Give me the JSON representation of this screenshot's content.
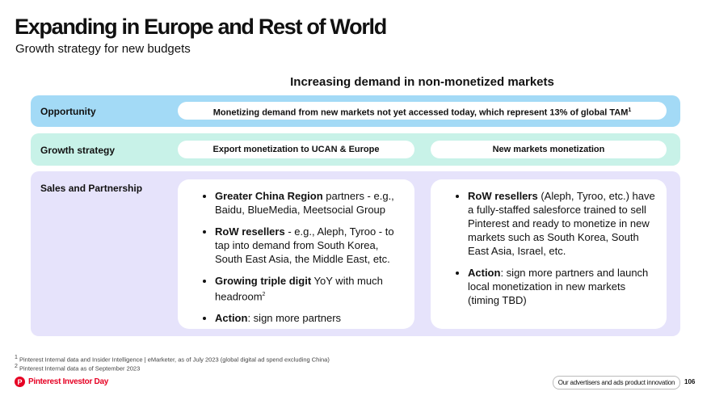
{
  "header": {
    "title": "Expanding in Europe and Rest of World",
    "subtitle": "Growth strategy for new budgets"
  },
  "section_heading": "Increasing demand in non-monetized markets",
  "opportunity": {
    "label": "Opportunity",
    "text": "Monetizing demand from new markets not yet accessed today, which represent 13% of global TAM",
    "sup": "1"
  },
  "growth_strategy": {
    "label": "Growth strategy",
    "pills": [
      "Export monetization to UCAN & Europe",
      "New markets monetization"
    ]
  },
  "sales": {
    "label": "Sales and Partnership",
    "columns": [
      [
        {
          "bold": "Greater China Region",
          "text": " partners - e.g., Baidu, BlueMedia, Meetsocial Group"
        },
        {
          "bold": "RoW resellers",
          "text": " - e.g., Aleph, Tyroo - to tap into demand from South Korea, South East Asia, the Middle East, etc."
        },
        {
          "bold": "Growing triple digit",
          "text": " YoY with much headroom",
          "sup": "2"
        },
        {
          "bold": "Action",
          "text": ": sign more partners"
        }
      ],
      [
        {
          "bold": "RoW resellers",
          "text": " (Aleph, Tyroo, etc.) have a fully-staffed salesforce trained to sell Pinterest and ready to monetize in new markets such as South Korea, South East Asia, Israel, etc."
        },
        {
          "bold": "Action",
          "text": ": sign more partners and launch local monetization in new markets (timing TBD)"
        }
      ]
    ]
  },
  "footnotes": [
    {
      "mark": "1",
      "text": "Pinterest Internal data and Insider Intelligence | eMarketer, as of July 2023 (global digital ad spend excluding China)"
    },
    {
      "mark": "2",
      "text": "Pinterest Internal data as of September 2023"
    }
  ],
  "footer": {
    "brand": "Pinterest Investor Day",
    "section": "Our advertisers and ads product innovation",
    "page": "106"
  }
}
